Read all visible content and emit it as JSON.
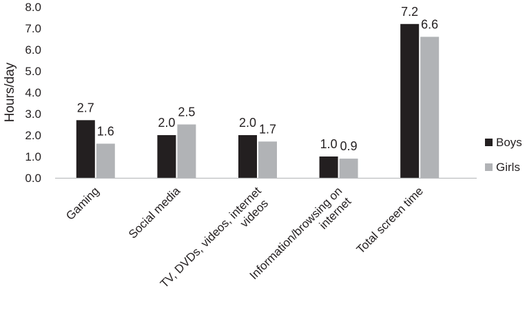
{
  "chart_data": {
    "type": "bar",
    "ylabel": "Hours/day",
    "xlabel": "",
    "ylim": [
      0,
      8
    ],
    "yticks": [
      "0.0",
      "1.0",
      "2.0",
      "3.0",
      "4.0",
      "5.0",
      "6.0",
      "7.0",
      "8.0"
    ],
    "grid": false,
    "legend_position": "right",
    "categories": [
      [
        "Gaming"
      ],
      [
        "Social media"
      ],
      [
        "TV, DVDs, videos, internet",
        "videos"
      ],
      [
        "Information/browsing on",
        "internet"
      ],
      [
        "Total screen time"
      ]
    ],
    "series": [
      {
        "name": "Boys",
        "color": "#231f20",
        "values": [
          2.7,
          2.0,
          2.0,
          1.0,
          7.2
        ],
        "labels": [
          "2.7",
          "2.0",
          "2.0",
          "1.0",
          "7.2"
        ]
      },
      {
        "name": "Girls",
        "color": "#b1b3b6",
        "values": [
          1.6,
          2.5,
          1.7,
          0.9,
          6.6
        ],
        "labels": [
          "1.6",
          "2.5",
          "1.7",
          "0.9",
          "6.6"
        ]
      }
    ]
  }
}
